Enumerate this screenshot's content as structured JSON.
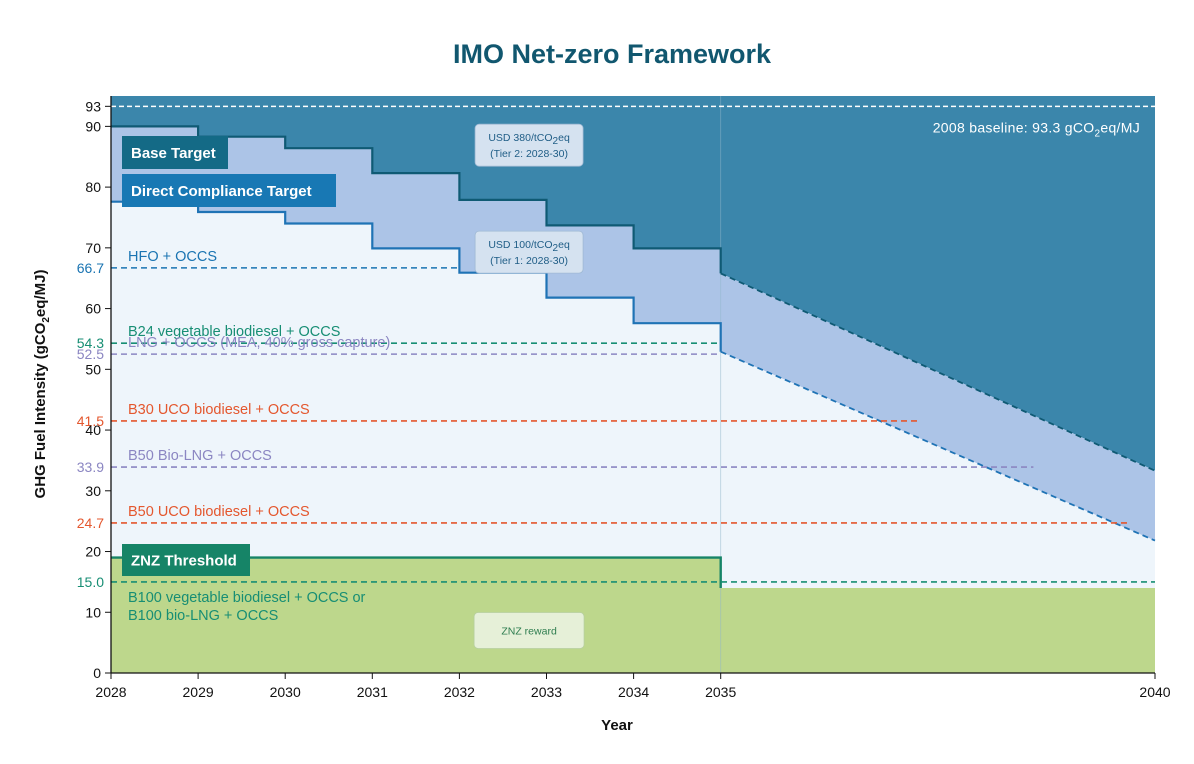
{
  "chart_data": {
    "type": "area",
    "title": "IMO Net-zero Framework",
    "xlabel": "Year",
    "ylabel_parts": [
      "GHG Fuel Intensity (gCO",
      "2",
      "eq/MJ)"
    ],
    "xlim": [
      2028,
      2040
    ],
    "ylim": [
      0,
      95
    ],
    "x_ticks": [
      2028,
      2029,
      2030,
      2031,
      2032,
      2033,
      2034,
      2035,
      2040
    ],
    "y_ticks": [
      0,
      10,
      20,
      30,
      40,
      50,
      60,
      70,
      80,
      90,
      93
    ],
    "grid": false,
    "baseline": {
      "value": 93.3,
      "label_parts": [
        "2008 baseline: 93.3 gCO",
        "2",
        "eq/MJ"
      ],
      "tick_label": "93"
    },
    "series": [
      {
        "name": "Base Target",
        "color": "#3b86ab",
        "box_color": "#146a86",
        "points": [
          [
            2028,
            90
          ],
          [
            2029,
            90
          ],
          [
            2029,
            88.3
          ],
          [
            2030,
            88.3
          ],
          [
            2030,
            86.4
          ],
          [
            2031,
            86.4
          ],
          [
            2031,
            82.3
          ],
          [
            2032,
            82.3
          ],
          [
            2032,
            77.9
          ],
          [
            2033,
            77.9
          ],
          [
            2033,
            73.7
          ],
          [
            2034,
            73.7
          ],
          [
            2034,
            69.9
          ],
          [
            2035,
            69.9
          ],
          [
            2035,
            65.8
          ],
          [
            2040,
            33.3
          ]
        ]
      },
      {
        "name": "Direct Compliance Target",
        "color": "#acc4e7",
        "box_color": "#1878b4",
        "points": [
          [
            2028,
            77.6
          ],
          [
            2029,
            77.6
          ],
          [
            2029,
            75.9
          ],
          [
            2030,
            75.9
          ],
          [
            2030,
            74.0
          ],
          [
            2031,
            74.0
          ],
          [
            2031,
            69.9
          ],
          [
            2032,
            69.9
          ],
          [
            2032,
            65.9
          ],
          [
            2033,
            65.9
          ],
          [
            2033,
            61.8
          ],
          [
            2034,
            61.8
          ],
          [
            2034,
            57.6
          ],
          [
            2035,
            57.6
          ],
          [
            2035,
            52.9
          ],
          [
            2040,
            21.8
          ]
        ]
      },
      {
        "name": "ZNZ Threshold",
        "color": "#bdd78c",
        "box_color": "#168467",
        "points": [
          [
            2028,
            19
          ],
          [
            2035,
            19
          ],
          [
            2035,
            14
          ],
          [
            2040,
            14
          ]
        ]
      }
    ],
    "tier_labels": [
      {
        "line1": "USD 380/tCO",
        "sub": "2",
        "line1b": "eq",
        "line2": "(Tier 2: 2028-30)",
        "x": 2032.8,
        "y": 86.9
      },
      {
        "line1": "USD 100/tCO",
        "sub": "2",
        "line1b": "eq",
        "line2": "(Tier 1: 2028-30)",
        "x": 2032.8,
        "y": 69.3
      }
    ],
    "znz_reward_label": {
      "text": "ZNZ reward",
      "x": 2032.8,
      "y": 7
    },
    "fuel_levels": [
      {
        "label": "HFO + OCCS",
        "value": 66.7,
        "value_label": "66.7",
        "color": "#1a74b2",
        "x_end": 2032
      },
      {
        "label": "B24 vegetable biodiesel + OCCS",
        "value": 54.3,
        "value_label": "54.3",
        "color": "#178e74",
        "x_end": 2035
      },
      {
        "label": "LNG + OCCS (MEA, 40% gross capture)",
        "value": 52.5,
        "value_label": "52.5",
        "color": "#8b86c2",
        "x_end": 2035
      },
      {
        "label": "B30 UCO biodiesel + OCCS",
        "value": 41.5,
        "value_label": "41.5",
        "color": "#e4572e",
        "x_end": 2037.3
      },
      {
        "label": "B50 Bio-LNG + OCCS",
        "value": 33.9,
        "value_label": "33.9",
        "color": "#8b86c2",
        "x_end": 2038.6
      },
      {
        "label": "B50 UCO biodiesel + OCCS",
        "value": 24.7,
        "value_label": "24.7",
        "color": "#e4572e",
        "x_end": 2039.7
      },
      {
        "label": "B100 vegetable biodiesel + OCCS or",
        "label2": "B100 bio-LNG + OCCS",
        "value": 15.0,
        "value_label": "15.0",
        "color": "#178e74",
        "x_end": 2040
      }
    ],
    "colors": {
      "light_fill": "#eef5fb",
      "axis": "#111111",
      "tier_box": "#d5e2f0",
      "tier_text": "#1f5d86",
      "reward_box": "#e6f0d8",
      "reward_text": "#2e7d4f"
    }
  }
}
